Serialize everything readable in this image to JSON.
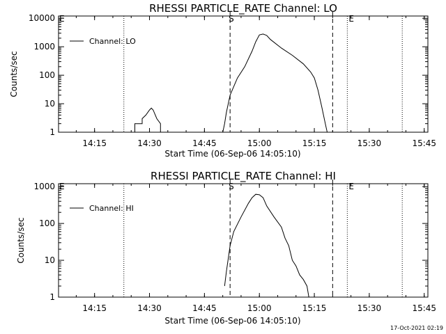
{
  "footer": {
    "timestamp": "17-Oct-2021 02:19"
  },
  "chart_data": [
    {
      "type": "line",
      "title": "RHESSI PARTICLE_RATE Channel: LO",
      "xlabel": "Start Time (06-Sep-06 14:05:10)",
      "ylabel": "Counts/sec",
      "y_scale": "log",
      "ylim": [
        1,
        12000
      ],
      "xlim": [
        "14:05:10",
        "15:46"
      ],
      "x_ticks": [
        "14:15",
        "14:30",
        "14:45",
        "15:00",
        "15:15",
        "15:30",
        "15:45"
      ],
      "y_ticks": [
        "1",
        "10",
        "100",
        "1000",
        "10000"
      ],
      "grid": false,
      "legend_position": "top-left",
      "flags": [
        "E",
        "S",
        "E"
      ],
      "dotted_times": [
        "14:23",
        "15:24",
        "15:39"
      ],
      "dashed_times": [
        "14:52",
        "15:20"
      ],
      "series": [
        {
          "name": "Channel: LO",
          "segments": [
            [
              [
                "14:26",
                1
              ],
              [
                "14:26",
                2
              ],
              [
                "14:28",
                2
              ],
              [
                "14:28",
                3
              ],
              [
                "14:29",
                4
              ],
              [
                "14:30",
                6
              ],
              [
                "14:30:30",
                7
              ],
              [
                "14:31",
                6
              ],
              [
                "14:32",
                3
              ],
              [
                "14:33",
                2
              ],
              [
                "14:33",
                1
              ]
            ],
            [
              [
                "14:50",
                1
              ],
              [
                "14:50:30",
                2
              ],
              [
                "14:51",
                5
              ],
              [
                "14:52",
                20
              ],
              [
                "14:53",
                40
              ],
              [
                "14:54",
                80
              ],
              [
                "14:56",
                200
              ],
              [
                "14:58",
                700
              ],
              [
                "14:59",
                1500
              ],
              [
                "15:00",
                2600
              ],
              [
                "15:01",
                2800
              ],
              [
                "15:02",
                2500
              ],
              [
                "15:03",
                1800
              ],
              [
                "15:06",
                900
              ],
              [
                "15:09",
                500
              ],
              [
                "15:12",
                250
              ],
              [
                "15:14",
                130
              ],
              [
                "15:15",
                80
              ],
              [
                "15:16",
                30
              ],
              [
                "15:17",
                8
              ],
              [
                "15:18",
                2
              ],
              [
                "15:18:30",
                1
              ]
            ]
          ]
        }
      ]
    },
    {
      "type": "line",
      "title": "RHESSI PARTICLE_RATE Channel: HI",
      "xlabel": "Start Time (06-Sep-06 14:05:10)",
      "ylabel": "Counts/sec",
      "y_scale": "log",
      "ylim": [
        1,
        1200
      ],
      "xlim": [
        "14:05:10",
        "15:46"
      ],
      "x_ticks": [
        "14:15",
        "14:30",
        "14:45",
        "15:00",
        "15:15",
        "15:30",
        "15:45"
      ],
      "y_ticks": [
        "1",
        "10",
        "100",
        "1000"
      ],
      "grid": false,
      "legend_position": "top-left",
      "flags": [
        "E",
        "S",
        "E"
      ],
      "dotted_times": [
        "14:23",
        "15:24",
        "15:39"
      ],
      "dashed_times": [
        "14:52",
        "15:20"
      ],
      "series": [
        {
          "name": "Channel: HI",
          "segments": [
            [
              [
                "14:50:30",
                2
              ],
              [
                "14:51",
                5
              ],
              [
                "14:52",
                25
              ],
              [
                "14:53",
                60
              ],
              [
                "14:55",
                150
              ],
              [
                "14:57",
                350
              ],
              [
                "14:58",
                500
              ],
              [
                "14:59",
                620
              ],
              [
                "15:00",
                600
              ],
              [
                "15:01",
                500
              ],
              [
                "15:02",
                300
              ],
              [
                "15:04",
                150
              ],
              [
                "15:06",
                80
              ],
              [
                "15:07",
                40
              ],
              [
                "15:08",
                25
              ],
              [
                "15:09",
                10
              ],
              [
                "15:10",
                7
              ],
              [
                "15:11",
                4
              ],
              [
                "15:12",
                3
              ],
              [
                "15:13",
                2
              ],
              [
                "15:13:30",
                1
              ]
            ]
          ]
        }
      ]
    }
  ]
}
